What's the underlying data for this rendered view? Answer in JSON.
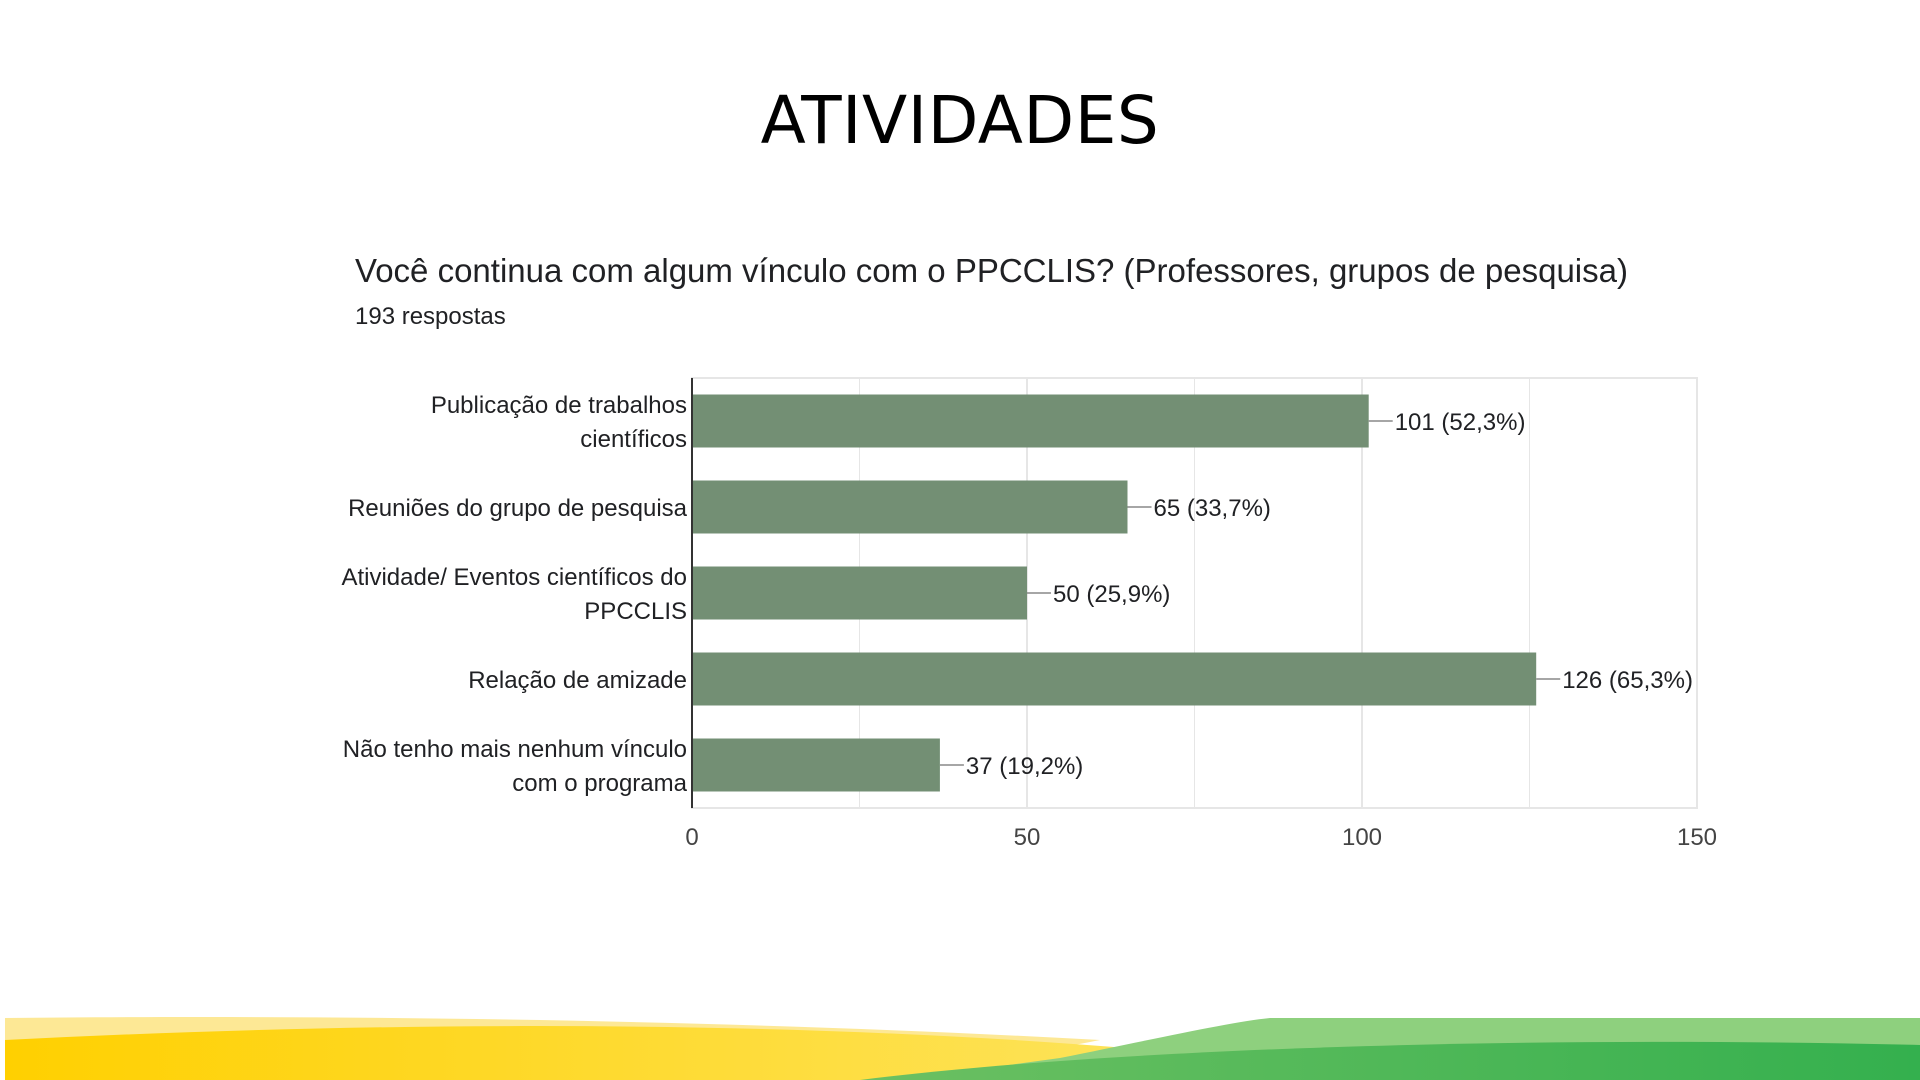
{
  "slide_title": "ATIVIDADES",
  "question": "Você continua com algum vínculo com o PPCCLIS? (Professores, grupos de pesquisa)",
  "response_count": "193 respostas",
  "colors": {
    "bar": "#738f74",
    "grid": "#e6e6e6",
    "axis": "#333333",
    "text": "#202124",
    "band_yellow": "#fdd20f",
    "band_green": "#3db552"
  },
  "chart_data": {
    "type": "bar",
    "orientation": "horizontal",
    "categories": [
      [
        "Publicação de trabalhos",
        "científicos"
      ],
      [
        "Reuniões do grupo de pesquisa"
      ],
      [
        "Atividade/ Eventos científicos do",
        "PPCCLIS"
      ],
      [
        "Relação de amizade"
      ],
      [
        "Não tenho mais nenhum vínculo",
        "com o programa"
      ]
    ],
    "values": [
      101,
      65,
      50,
      126,
      37
    ],
    "data_labels": [
      "101 (52,3%)",
      "65 (33,7%)",
      "50 (25,9%)",
      "126 (65,3%)",
      "37 (19,2%)"
    ],
    "xlim": [
      0,
      150
    ],
    "xticks": [
      0,
      50,
      100,
      150
    ],
    "grid": true,
    "legend": "none"
  }
}
